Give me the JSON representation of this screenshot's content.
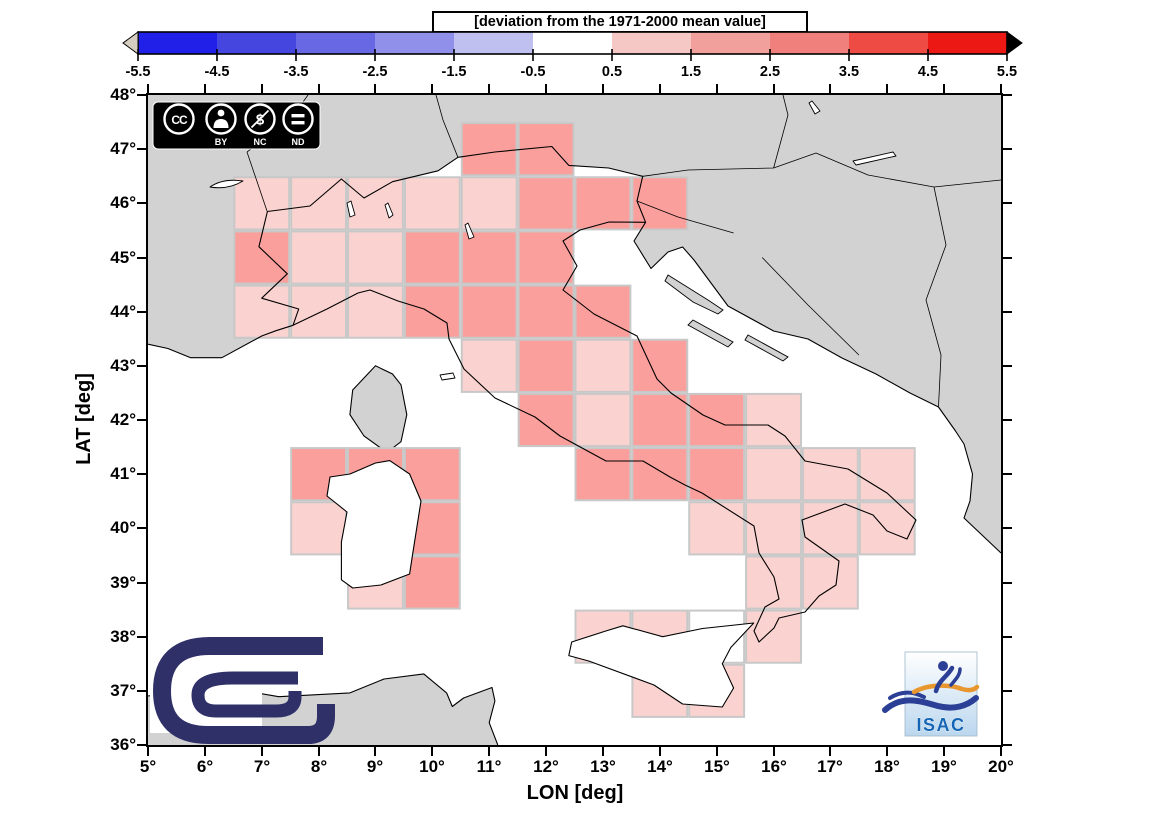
{
  "title": "[deviation from the 1971-2000 mean value]",
  "axes": {
    "x_label": "LON [deg]",
    "y_label": "LAT [deg]",
    "x_ticks": [
      "5°",
      "6°",
      "7°",
      "8°",
      "9°",
      "10°",
      "11°",
      "12°",
      "13°",
      "14°",
      "15°",
      "16°",
      "17°",
      "18°",
      "19°",
      "20°"
    ],
    "y_ticks": [
      "36°",
      "37°",
      "38°",
      "39°",
      "40°",
      "41°",
      "42°",
      "43°",
      "44°",
      "45°",
      "46°",
      "47°",
      "48°"
    ]
  },
  "badges": {
    "cc": {
      "cc_label": "CC",
      "items": [
        "BY",
        "NC",
        "ND"
      ],
      "icons": [
        "person-icon",
        "no-dollar-icon",
        "equals-icon"
      ]
    },
    "isac_label": "ISAC"
  },
  "colors": {
    "land_gray": "#D2D2D2",
    "sea_white": "#FFFFFF",
    "grid_line": "#C8C8C8",
    "coast_black": "#000000",
    "cnr_navy": "#2E3067",
    "isac_blue": "#2B3F96",
    "isac_orange": "#E8962E"
  },
  "chart_data": {
    "type": "heatmap",
    "title": "[deviation from the 1971-2000 mean value]",
    "xlabel": "LON [deg]",
    "ylabel": "LAT [deg]",
    "x_range": [
      5,
      20
    ],
    "y_range": [
      36,
      48
    ],
    "grid": false,
    "colorbar": {
      "ticks": [
        "-5.5",
        "-4.5",
        "-3.5",
        "-2.5",
        "-1.5",
        "-0.5",
        "0.5",
        "1.5",
        "2.5",
        "3.5",
        "4.5",
        "5.5"
      ],
      "segment_colors": [
        "#2020E8",
        "#4545E0",
        "#6868E4",
        "#9090EA",
        "#C0C0F0",
        "#FFFFFF",
        "#F5C8C5",
        "#F2A09C",
        "#F0807B",
        "#EE4B45",
        "#EB1813"
      ],
      "left_arrow_color": "#D5CEC0",
      "right_arrow_color": "#000000",
      "position": "top-horizontal"
    },
    "levels": {
      "0": {
        "bucket": "-0.5 to +0.5",
        "color": "#FFFFFF"
      },
      "1": {
        "bucket": "+0.5 to +1.5",
        "color": "#FAD2CF"
      },
      "2": {
        "bucket": "+1.5 to +2.5",
        "color": "#FA9F9B"
      }
    },
    "cell_size_deg": 1,
    "cells": [
      [
        11,
        47,
        2
      ],
      [
        12,
        47,
        2
      ],
      [
        7,
        46,
        1
      ],
      [
        8,
        46,
        1
      ],
      [
        9,
        46,
        1
      ],
      [
        10,
        46,
        1
      ],
      [
        11,
        46,
        1
      ],
      [
        12,
        46,
        2
      ],
      [
        13,
        46,
        2
      ],
      [
        14,
        46,
        2
      ],
      [
        7,
        45,
        2
      ],
      [
        8,
        45,
        1
      ],
      [
        9,
        45,
        1
      ],
      [
        10,
        45,
        2
      ],
      [
        11,
        45,
        2
      ],
      [
        12,
        45,
        2
      ],
      [
        7,
        44,
        1
      ],
      [
        8,
        44,
        1
      ],
      [
        9,
        44,
        1
      ],
      [
        10,
        44,
        2
      ],
      [
        11,
        44,
        2
      ],
      [
        12,
        44,
        2
      ],
      [
        13,
        44,
        2
      ],
      [
        11,
        43,
        1
      ],
      [
        12,
        43,
        2
      ],
      [
        13,
        43,
        1
      ],
      [
        14,
        43,
        2
      ],
      [
        12,
        42,
        2
      ],
      [
        13,
        42,
        1
      ],
      [
        14,
        42,
        2
      ],
      [
        15,
        42,
        2
      ],
      [
        16,
        42,
        1
      ],
      [
        8,
        41,
        2
      ],
      [
        9,
        41,
        2
      ],
      [
        10,
        41,
        2
      ],
      [
        13,
        41,
        2
      ],
      [
        14,
        41,
        2
      ],
      [
        15,
        41,
        2
      ],
      [
        16,
        41,
        1
      ],
      [
        17,
        41,
        1
      ],
      [
        18,
        41,
        1
      ],
      [
        8,
        40,
        1
      ],
      [
        9,
        40,
        1
      ],
      [
        10,
        40,
        2
      ],
      [
        15,
        40,
        1
      ],
      [
        16,
        40,
        1
      ],
      [
        17,
        40,
        1
      ],
      [
        18,
        40,
        1
      ],
      [
        9,
        39,
        1
      ],
      [
        10,
        39,
        2
      ],
      [
        16,
        39,
        1
      ],
      [
        17,
        39,
        1
      ],
      [
        13,
        38,
        1
      ],
      [
        14,
        38,
        1
      ],
      [
        15,
        38,
        0
      ],
      [
        16,
        38,
        1
      ],
      [
        14,
        37,
        1
      ],
      [
        15,
        37,
        1
      ]
    ]
  }
}
